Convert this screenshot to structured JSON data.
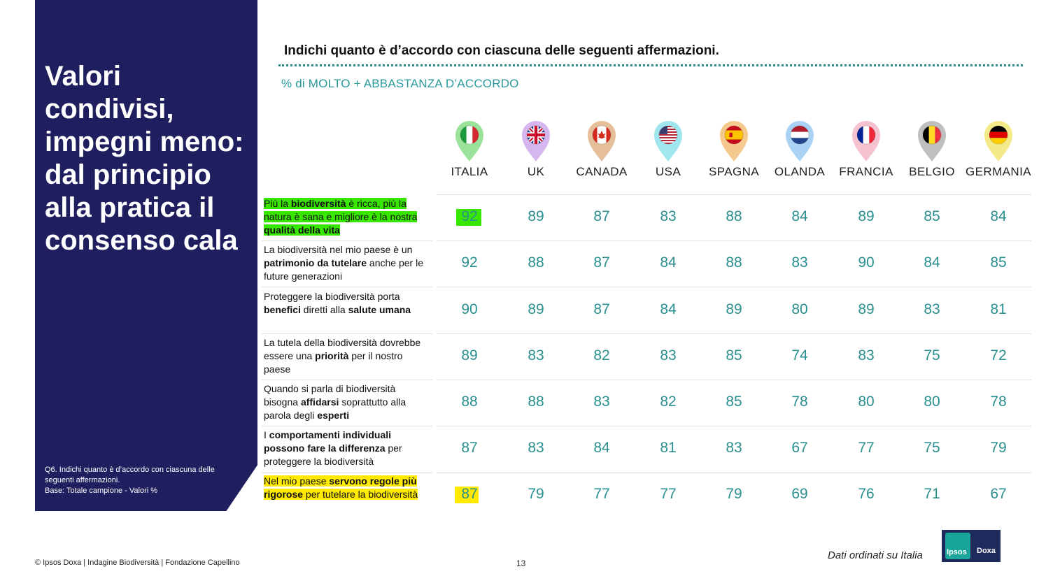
{
  "left": {
    "title": "Valori\ncondivisi,\nimpegni meno:\ndal principio\nalla pratica il\nconsenso cala",
    "note": "Q6. Indichi quanto è d’accordo con ciascuna delle\nseguenti affermazioni.\nBase: Totale campione - Valori %"
  },
  "header": {
    "question": "Indichi quanto è d’accordo con ciascuna delle seguenti affermazioni.",
    "subtitle": "% di MOLTO + ABBASTANZA D’ACCORDO"
  },
  "countries": [
    {
      "name": "ITALIA",
      "flag": "italy-flag",
      "pin": "#9be39a"
    },
    {
      "name": "UK",
      "flag": "uk-flag",
      "pin": "#d6b6ee"
    },
    {
      "name": "CANADA",
      "flag": "canada-flag",
      "pin": "#e5be9a"
    },
    {
      "name": "USA",
      "flag": "usa-flag",
      "pin": "#9fe6ef"
    },
    {
      "name": "SPAGNA",
      "flag": "spain-flag",
      "pin": "#f5c98e"
    },
    {
      "name": "OLANDA",
      "flag": "netherlands-flag",
      "pin": "#a9d2f5"
    },
    {
      "name": "FRANCIA",
      "flag": "france-flag",
      "pin": "#f5c2cf"
    },
    {
      "name": "BELGIO",
      "flag": "belgium-flag",
      "pin": "#bfbfbf"
    },
    {
      "name": "GERMANIA",
      "flag": "germany-flag",
      "pin": "#f5ea8a"
    }
  ],
  "colors": {
    "panel": "#1f1f5f",
    "teal": "#2a8f8f",
    "highlight_green": "#39e600",
    "highlight_yellow": "#ffea00"
  },
  "statements": [
    {
      "parts": [
        [
          "Più la ",
          false
        ],
        [
          "biodiversità",
          true
        ],
        [
          " è ricca, più la natura è sana e migliore è la nostra ",
          false
        ],
        [
          "qualità della vita",
          true
        ]
      ],
      "highlight": "green",
      "values": [
        "92",
        "89",
        "87",
        "83",
        "88",
        "84",
        "89",
        "85",
        "84"
      ]
    },
    {
      "parts": [
        [
          "La biodiversità nel mio paese è un ",
          false
        ],
        [
          "patrimonio da tutelare",
          true
        ],
        [
          " anche per le future generazioni",
          false
        ]
      ],
      "highlight": "",
      "values": [
        "92",
        "88",
        "87",
        "84",
        "88",
        "83",
        "90",
        "84",
        "85"
      ]
    },
    {
      "parts": [
        [
          "Proteggere la biodiversità porta ",
          false
        ],
        [
          "benefici",
          true
        ],
        [
          " diretti alla ",
          false
        ],
        [
          "salute umana",
          true
        ]
      ],
      "highlight": "",
      "values": [
        "90",
        "89",
        "87",
        "84",
        "89",
        "80",
        "89",
        "83",
        "81"
      ]
    },
    {
      "parts": [
        [
          "La tutela della biodiversità dovrebbe essere una ",
          false
        ],
        [
          "priorità",
          true
        ],
        [
          " per il nostro paese",
          false
        ]
      ],
      "highlight": "",
      "values": [
        "89",
        "83",
        "82",
        "83",
        "85",
        "74",
        "83",
        "75",
        "72"
      ]
    },
    {
      "parts": [
        [
          "Quando si parla di biodiversità bisogna ",
          false
        ],
        [
          "affidarsi",
          true
        ],
        [
          " soprattutto alla parola degli ",
          false
        ],
        [
          "esperti",
          true
        ]
      ],
      "highlight": "",
      "values": [
        "88",
        "88",
        "83",
        "82",
        "85",
        "78",
        "80",
        "80",
        "78"
      ]
    },
    {
      "parts": [
        [
          "I ",
          false
        ],
        [
          "comportamenti individuali possono fare la differenza",
          true
        ],
        [
          " per proteggere la biodiversità",
          false
        ]
      ],
      "highlight": "",
      "values": [
        "87",
        "83",
        "84",
        "81",
        "83",
        "67",
        "77",
        "75",
        "79"
      ]
    },
    {
      "parts": [
        [
          "Nel mio paese ",
          false
        ],
        [
          "servono regole più rigorose",
          true
        ],
        [
          " per tutelare la biodiversità",
          false
        ]
      ],
      "highlight": "yellow",
      "values": [
        "87",
        "79",
        "77",
        "77",
        "79",
        "69",
        "76",
        "71",
        "67"
      ]
    }
  ],
  "footer": {
    "copyright": "© Ipsos Doxa | Indagine Biodiversità | Fondazione Capellino",
    "page": "13",
    "sorted_note": "Dati ordinati su Italia",
    "logo_left": "Ipsos",
    "logo_right": "Doxa"
  }
}
